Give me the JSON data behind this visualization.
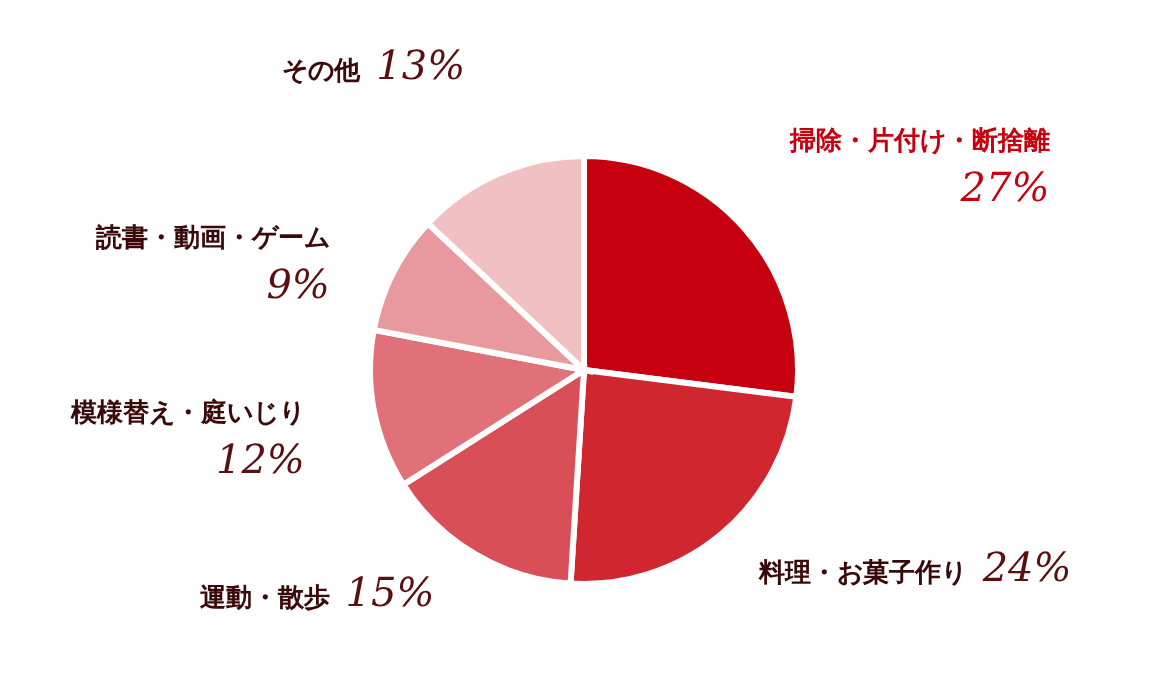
{
  "chart_data": {
    "type": "pie",
    "categories": [
      "掃除・片付け・断捨離",
      "料理・お菓子作り",
      "運動・散歩",
      "模様替え・庭いじり",
      "読書・動画・ゲーム",
      "その他"
    ],
    "values": [
      27,
      24,
      15,
      12,
      9,
      13
    ],
    "colors": [
      "#c6000f",
      "#d0262f",
      "#d84f58",
      "#e07179",
      "#e8999e",
      "#f1c0c3"
    ],
    "value_labels": [
      "27%",
      "24%",
      "15%",
      "12%",
      "9%",
      "13%"
    ]
  }
}
